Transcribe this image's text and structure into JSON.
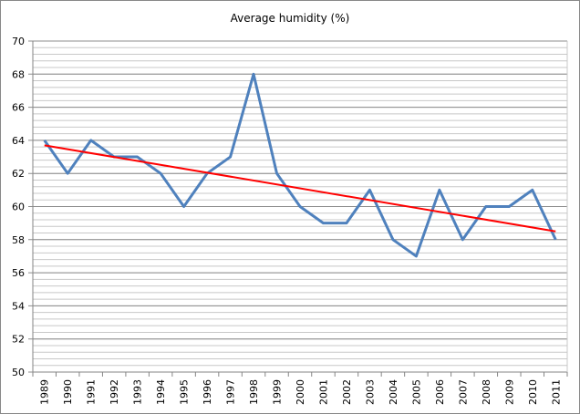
{
  "chart_data": {
    "type": "line",
    "title": "Average humidity (%)",
    "xlabel": "",
    "ylabel": "",
    "categories": [
      "1989",
      "1990",
      "1991",
      "1992",
      "1993",
      "1994",
      "1995",
      "1996",
      "1997",
      "1998",
      "1999",
      "2000",
      "2001",
      "2002",
      "2003",
      "2004",
      "2005",
      "2006",
      "2007",
      "2008",
      "2009",
      "2010",
      "2011"
    ],
    "series": [
      {
        "values": [
          64,
          62,
          64,
          63,
          63,
          62,
          60,
          62,
          63,
          68,
          62,
          60,
          59,
          59,
          61,
          58,
          57,
          61,
          58,
          60,
          60,
          61,
          58
        ],
        "color": "#4F81BD"
      }
    ],
    "trendline": {
      "type": "linear",
      "start": 63.7,
      "end": 58.5,
      "color": "#FF0000"
    },
    "ylim": [
      50,
      70
    ],
    "yticks": [
      50,
      52,
      54,
      56,
      58,
      60,
      62,
      64,
      66,
      68,
      70
    ],
    "minor_grid_step": 0.4,
    "grid": true,
    "legend": "none"
  }
}
